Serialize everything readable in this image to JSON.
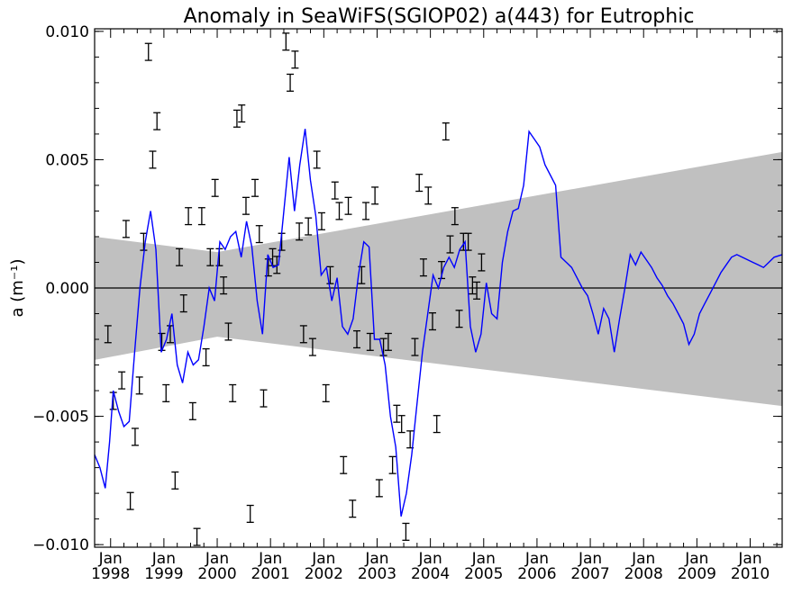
{
  "chart_data": {
    "type": "line",
    "title": "Anomaly in SeaWiFS(SGIOP02) a(443) for Eutrophic",
    "xlabel": "",
    "ylabel": "a (m⁻¹)",
    "xlim": [
      1997.7,
      2010.6
    ],
    "ylim": [
      -0.0101,
      0.0101
    ],
    "y_ticks": [
      -0.01,
      -0.005,
      0.0,
      0.005,
      0.01
    ],
    "y_tick_labels": [
      "−0.010",
      "−0.005",
      "0.000",
      "0.005",
      "0.010"
    ],
    "x_ticks": [
      {
        "year": 1998,
        "month": "Jan",
        "label": "1998"
      },
      {
        "year": 1999,
        "month": "Jan",
        "label": "1999"
      },
      {
        "year": 2000,
        "month": "Jan",
        "label": "2000"
      },
      {
        "year": 2001,
        "month": "Jan",
        "label": "2001"
      },
      {
        "year": 2002,
        "month": "Jan",
        "label": "2002"
      },
      {
        "year": 2003,
        "month": "Jan",
        "label": "2003"
      },
      {
        "year": 2004,
        "month": "Jan",
        "label": "2004"
      },
      {
        "year": 2005,
        "month": "Jan",
        "label": "2005"
      },
      {
        "year": 2006,
        "month": "Jan",
        "label": "2006"
      },
      {
        "year": 2007,
        "month": "Jan",
        "label": "2007"
      },
      {
        "year": 2008,
        "month": "Jan",
        "label": "2008"
      },
      {
        "year": 2009,
        "month": "Jan",
        "label": "2009"
      },
      {
        "year": 2010,
        "month": "Jan",
        "label": "2010"
      }
    ],
    "grid": false,
    "zero_line": 0.0,
    "confidence_band": {
      "color": "#c0c0c0",
      "upper": [
        [
          1997.7,
          0.002
        ],
        [
          2000.0,
          0.0014
        ],
        [
          2010.6,
          0.0053
        ]
      ],
      "lower": [
        [
          1997.7,
          -0.0028
        ],
        [
          2000.0,
          -0.0019
        ],
        [
          2010.6,
          -0.0046
        ]
      ]
    },
    "smoothed_series": {
      "color": "#0000ff",
      "x": [
        1997.7,
        1997.8,
        1997.9,
        1997.98,
        1998.05,
        1998.15,
        1998.25,
        1998.35,
        1998.45,
        1998.55,
        1998.65,
        1998.75,
        1998.85,
        1998.95,
        1999.05,
        1999.15,
        1999.25,
        1999.35,
        1999.45,
        1999.55,
        1999.65,
        1999.75,
        1999.85,
        1999.95,
        2000.05,
        2000.15,
        2000.25,
        2000.35,
        2000.45,
        2000.55,
        2000.65,
        2000.75,
        2000.85,
        2000.95,
        2001.05,
        2001.15,
        2001.25,
        2001.35,
        2001.45,
        2001.55,
        2001.65,
        2001.75,
        2001.85,
        2001.95,
        2002.05,
        2002.15,
        2002.25,
        2002.35,
        2002.45,
        2002.55,
        2002.65,
        2002.75,
        2002.85,
        2002.95,
        2003.05,
        2003.15,
        2003.25,
        2003.35,
        2003.45,
        2003.55,
        2003.65,
        2003.75,
        2003.85,
        2003.95,
        2004.05,
        2004.15,
        2004.25,
        2004.35,
        2004.45,
        2004.55,
        2004.65,
        2004.75,
        2004.85,
        2004.95,
        2005.05,
        2005.15,
        2005.25,
        2005.35,
        2005.45,
        2005.55,
        2005.65,
        2005.75,
        2005.85,
        2005.95,
        2006.05,
        2006.15,
        2006.25,
        2006.35,
        2006.45,
        2006.55,
        2006.65,
        2006.75,
        2006.85,
        2006.95,
        2007.05,
        2007.15,
        2007.25,
        2007.35,
        2007.45,
        2007.55,
        2007.65,
        2007.75,
        2007.85,
        2007.95,
        2008.05,
        2008.15,
        2008.25,
        2008.35,
        2008.45,
        2008.55,
        2008.65,
        2008.75,
        2008.85,
        2008.95,
        2009.05,
        2009.15,
        2009.25,
        2009.35,
        2009.45,
        2009.55,
        2009.65,
        2009.75,
        2009.85,
        2009.95,
        2010.05,
        2010.15,
        2010.25,
        2010.35,
        2010.45,
        2010.6
      ],
      "y": [
        -0.0065,
        -0.007,
        -0.0078,
        -0.006,
        -0.004,
        -0.0048,
        -0.0054,
        -0.0052,
        -0.0025,
        0.0,
        0.0018,
        0.003,
        0.0015,
        -0.0025,
        -0.002,
        -0.001,
        -0.003,
        -0.0037,
        -0.0025,
        -0.003,
        -0.0028,
        -0.0015,
        0.0,
        -0.0005,
        0.0018,
        0.0015,
        0.002,
        0.0022,
        0.0012,
        0.0026,
        0.0016,
        -0.0005,
        -0.0018,
        0.0013,
        0.0008,
        0.0009,
        0.003,
        0.0051,
        0.003,
        0.0048,
        0.0062,
        0.0042,
        0.0028,
        0.0005,
        0.0008,
        -0.0005,
        0.0004,
        -0.0015,
        -0.0018,
        -0.0012,
        0.0005,
        0.0018,
        0.0016,
        -0.002,
        -0.002,
        -0.003,
        -0.005,
        -0.0062,
        -0.0089,
        -0.008,
        -0.0065,
        -0.0045,
        -0.0025,
        -0.001,
        0.0005,
        0.0,
        0.0008,
        0.0012,
        0.0008,
        0.0015,
        0.0018,
        -0.0015,
        -0.0025,
        -0.0018,
        0.0002,
        -0.001,
        -0.0012,
        0.001,
        0.0022,
        0.003,
        0.0031,
        0.004,
        0.0061,
        0.0058,
        0.0055,
        0.0048,
        0.0044,
        0.004,
        0.0012,
        0.001,
        0.0008,
        0.0004,
        0.0,
        -0.0003,
        -0.001,
        -0.0018,
        -0.0008,
        -0.0012,
        -0.0025,
        -0.0012,
        0.0,
        0.0013,
        0.0009,
        0.0014,
        0.0011,
        0.0008,
        0.0004,
        0.0001,
        -0.0003,
        -0.0006,
        -0.001,
        -0.0014,
        -0.0022,
        -0.0018,
        -0.001,
        -0.0006,
        -0.0002,
        0.0002,
        0.0006,
        0.0009,
        0.0012,
        0.0013,
        0.0012,
        0.0011,
        0.001,
        0.0009,
        0.0008,
        0.001,
        0.0012,
        0.0013
      ]
    },
    "monthly_error_bars": {
      "color": "#000000",
      "x": [
        1997.95,
        1998.05,
        1998.21,
        1998.29,
        1998.37,
        1998.46,
        1998.54,
        1998.62,
        1998.71,
        1998.79,
        1998.87,
        1998.96,
        1999.04,
        1999.12,
        1999.21,
        1999.29,
        1999.37,
        1999.46,
        1999.54,
        1999.62,
        1999.71,
        1999.79,
        1999.87,
        1999.96,
        2000.04,
        2000.12,
        2000.21,
        2000.29,
        2000.37,
        2000.46,
        2000.54,
        2000.62,
        2000.71,
        2000.79,
        2000.87,
        2000.96,
        2001.04,
        2001.12,
        2001.21,
        2001.29,
        2001.37,
        2001.46,
        2001.54,
        2001.62,
        2001.71,
        2001.79,
        2001.87,
        2001.96,
        2002.04,
        2002.12,
        2002.21,
        2002.29,
        2002.37,
        2002.46,
        2002.54,
        2002.62,
        2002.71,
        2002.79,
        2002.87,
        2002.96,
        2003.04,
        2003.12,
        2003.21,
        2003.29,
        2003.37,
        2003.46,
        2003.54,
        2003.62,
        2003.71,
        2003.79,
        2003.87,
        2003.96,
        2004.04,
        2004.12,
        2004.21,
        2004.29,
        2004.37,
        2004.46,
        2004.54,
        2004.62,
        2004.71,
        2004.79,
        2004.87,
        2004.96
      ],
      "y": [
        -0.0018,
        -0.0044,
        -0.0036,
        0.0023,
        -0.0083,
        -0.0058,
        -0.0038,
        0.0018,
        0.0092,
        0.005,
        0.0065,
        -0.0021,
        -0.0041,
        -0.0018,
        -0.0075,
        0.0012,
        -0.0006,
        0.0028,
        -0.0048,
        -0.0097,
        0.0028,
        -0.0027,
        0.0012,
        0.0039,
        0.0012,
        0.0001,
        -0.0017,
        -0.0041,
        0.0066,
        0.0068,
        0.0032,
        -0.0088,
        0.0039,
        0.0021,
        -0.0043,
        0.0008,
        0.0012,
        0.0009,
        0.0018,
        0.0096,
        0.008,
        0.0089,
        0.0022,
        -0.0018,
        0.0024,
        -0.0023,
        0.005,
        0.0026,
        -0.0041,
        0.0005,
        0.0038,
        0.003,
        -0.0069,
        0.0032,
        -0.0086,
        -0.002,
        0.0005,
        0.003,
        -0.0021,
        0.0036,
        -0.0078,
        -0.0023,
        -0.0021,
        -0.0069,
        -0.0049,
        -0.0053,
        -0.0095,
        -0.0059,
        -0.0023,
        0.0041,
        0.0008,
        0.0036,
        -0.0013,
        -0.0053,
        0.0007,
        0.0061,
        0.0017,
        0.0028,
        -0.0012,
        0.0018,
        0.0018,
        0.0001,
        -0.0001,
        0.001
      ]
    }
  }
}
